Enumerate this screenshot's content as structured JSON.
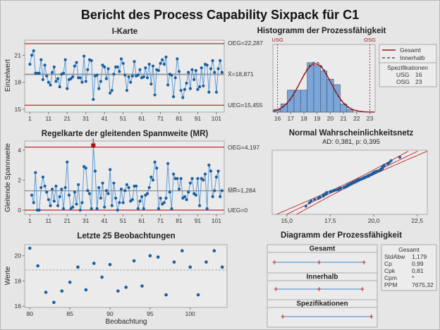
{
  "title": "Bericht des Process Capability Sixpack für C1",
  "colors": {
    "point": "#1b5e9e",
    "line": "#5b9bd5",
    "limit": "#c0272d",
    "center": "#9a9a9a",
    "bar": "#7aa6d9",
    "flag": "#a01515"
  },
  "chart_data": [
    {
      "type": "line",
      "title": "I-Karte",
      "ylabel": "Einzelwert",
      "xticks": [
        1,
        11,
        21,
        31,
        41,
        51,
        61,
        71,
        81,
        91,
        101
      ],
      "yticks": [
        15,
        18,
        21
      ],
      "ylim": [
        14.69,
        22.67
      ],
      "xlim": [
        -1.8,
        105.2
      ],
      "ucl": 22.287,
      "center": 18.871,
      "lcl": 15.455,
      "ucl_label": "OEG=22,287",
      "center_label": "X̄=18,871",
      "lcl_label": "UEG=15,455",
      "values": [
        20.0,
        21.0,
        21.5,
        19.0,
        19.0,
        19.0,
        20.5,
        18.3,
        19.9,
        18.7,
        18.0,
        17.7,
        19.1,
        19.7,
        18.1,
        18.4,
        17.5,
        18.9,
        19.0,
        20.5,
        17.3,
        18.3,
        18.4,
        18.6,
        19.8,
        20.2,
        18.5,
        18.5,
        18.0,
        20.9,
        18.1,
        19.4,
        20.5,
        20.4,
        16.1,
        18.7,
        18.8,
        17.3,
        18.1,
        19.9,
        19.7,
        18.4,
        19.5,
        16.8,
        17.1,
        18.9,
        19.7,
        19.7,
        19.2,
        20.6,
        20.1,
        18.8,
        17.1,
        18.6,
        18.0,
        18.7,
        20.3,
        18.7,
        18.8,
        19.4,
        18.5,
        18.6,
        19.6,
        18.5,
        20.0,
        17.8,
        19.8,
        16.6,
        19.4,
        19.3,
        20.1,
        20.5,
        20.0,
        20.8,
        17.7,
        18.9,
        18.8,
        16.4,
        18.5,
        20.6,
        19.2,
        17.1,
        16.3,
        17.2,
        17.9,
        19.1,
        17.3,
        19.4,
        18.3,
        19.3,
        17.2,
        17.5,
        19.6,
        17.6,
        20.0,
        19.9,
        16.9,
        19.5,
        20.4,
        19.1,
        16.9,
        19.5,
        20.4,
        19.1
      ]
    },
    {
      "type": "line",
      "title": "Regelkarte der gleitenden Spannweite (MR)",
      "ylabel": "Gleitende Spannweite",
      "xticks": [
        1,
        11,
        21,
        31,
        41,
        51,
        61,
        71,
        81,
        91,
        101
      ],
      "yticks": [
        0,
        2,
        4
      ],
      "ylim": [
        -0.28,
        4.6
      ],
      "xlim": [
        -1.8,
        105.2
      ],
      "ucl": 4.197,
      "center": 1.284,
      "lcl": 0,
      "ucl_label": "OEG=4,197",
      "center_label": "M̅R̅=1,284",
      "lcl_label": "UEG=0",
      "flags": [
        {
          "obs": 35,
          "label": "1"
        }
      ],
      "values": [
        null,
        1.0,
        0.5,
        2.5,
        0,
        0,
        1.5,
        2.2,
        1.6,
        1.2,
        0.7,
        0.3,
        1.4,
        0.6,
        1.6,
        0.3,
        0.9,
        1.4,
        0.1,
        1.5,
        3.2,
        1.0,
        0.1,
        0.2,
        1.2,
        0.4,
        1.7,
        0,
        0.5,
        2.9,
        2.8,
        1.3,
        1.1,
        0.1,
        4.3,
        2.6,
        0.1,
        1.5,
        0.8,
        1.8,
        0.2,
        1.3,
        1.1,
        2.7,
        0.3,
        1.8,
        0.8,
        0,
        0.5,
        1.4,
        0.5,
        1.3,
        1.7,
        1.5,
        0.6,
        0.7,
        1.6,
        1.6,
        0.1,
        0.6,
        0.9,
        0.1,
        1.0,
        1.1,
        1.5,
        2.2,
        2.0,
        3.2,
        2.8,
        0.1,
        0.8,
        0.4,
        0.5,
        0.8,
        3.1,
        1.2,
        0.1,
        2.4,
        2.1,
        2.1,
        1.4,
        2.1,
        0.8,
        0.9,
        0.7,
        1.2,
        1.8,
        2.1,
        1.1,
        1.0,
        2.1,
        0.3,
        2.1,
        2.0,
        2.4,
        0.1,
        3.0,
        2.6,
        0.9,
        1.3,
        2.2,
        2.6,
        0.9,
        1.3
      ]
    },
    {
      "type": "scatter",
      "title": "Letzte 25 Beobachtungen",
      "xlabel": "Beobachtung",
      "ylabel": "Werte",
      "xticks": [
        80,
        85,
        90,
        95,
        100
      ],
      "yticks": [
        16,
        18,
        20
      ],
      "xlim": [
        79.36,
        104.6
      ],
      "ylim": [
        15.9,
        20.88
      ],
      "center": 18.871,
      "x": [
        80,
        81,
        82,
        83,
        84,
        85,
        86,
        87,
        88,
        89,
        90,
        91,
        92,
        93,
        94,
        95,
        96,
        97,
        98,
        99,
        100,
        101,
        102,
        103,
        104
      ],
      "values": [
        20.6,
        19.2,
        17.1,
        16.3,
        17.2,
        17.9,
        19.1,
        17.3,
        19.4,
        18.3,
        19.3,
        17.2,
        17.5,
        19.6,
        17.6,
        20.0,
        19.9,
        16.9,
        19.5,
        20.4,
        19.1,
        16.9,
        19.5,
        20.4,
        19.1
      ]
    },
    {
      "type": "bar",
      "title": "Histogramm der Prozessfähigkeit",
      "xticks": [
        16,
        17,
        18,
        19,
        20,
        21,
        22,
        23
      ],
      "xlim": [
        15.65,
        23.4
      ],
      "bin_edges": [
        15.75,
        16.25,
        16.75,
        17.25,
        17.75,
        18.25,
        18.75,
        19.25,
        19.75,
        20.25,
        20.75,
        21.25,
        21.75
      ],
      "counts": [
        1,
        3,
        8,
        8,
        8,
        18,
        17,
        15,
        12,
        10,
        3,
        1
      ],
      "lsl": 16,
      "usl": 23,
      "lsl_label": "USG",
      "usl_label": "OSG",
      "mean": 18.871,
      "sd_overall": 1.179,
      "sd_within": 1.138,
      "legend": {
        "overall": "Gesamt",
        "within": "Innerhalb",
        "spec_title": "Spezifikationen",
        "lsl_label": "USG",
        "lsl_value": "16",
        "usl_label": "OSG",
        "usl_value": "23"
      }
    },
    {
      "type": "scatter",
      "title": "Normal Wahrscheinlichkeitsnetz",
      "subtitle": "AD: 0,381, p: 0,395",
      "xticks": [
        "15,0",
        "17,5",
        "20,0",
        "22,5"
      ],
      "xtick_values": [
        15,
        17.5,
        20,
        22.5
      ],
      "xlim": [
        14.16,
        23.08
      ]
    },
    {
      "type": "table",
      "title": "Diagramm der Prozessfähigkeit",
      "rows": [
        {
          "label": "Gesamt",
          "low": 15.334,
          "mid": 18.871,
          "high": 22.408
        },
        {
          "label": "Innerhalb",
          "low": 15.457,
          "mid": 18.871,
          "high": 22.285
        },
        {
          "label": "Spezifikationen",
          "low": 16,
          "mid": null,
          "high": 23
        }
      ],
      "stats": {
        "title": "Gesamt",
        "items": [
          {
            "name": "StdAbw",
            "value": "1,179"
          },
          {
            "name": "Cp",
            "value": "0,99"
          },
          {
            "name": "Cpk",
            "value": "0,81"
          },
          {
            "name": "Cpm",
            "value": "*"
          },
          {
            "name": "PPM",
            "value": "7675,32"
          }
        ]
      }
    }
  ]
}
